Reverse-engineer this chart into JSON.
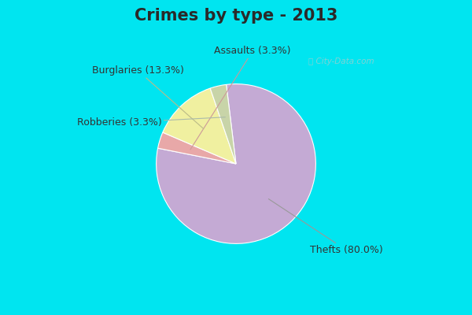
{
  "title": "Crimes by type - 2013",
  "wedge_order": [
    "Thefts",
    "Assaults",
    "Burglaries",
    "Robberies"
  ],
  "values": [
    80.0,
    3.3,
    13.3,
    3.3
  ],
  "colors": [
    "#c4aad4",
    "#e8a8a8",
    "#f0f0a0",
    "#c8d4a8"
  ],
  "background_cyan": "#00e5f0",
  "background_chart": "#c8e8d8",
  "title_fontsize": 15,
  "label_fontsize": 9,
  "startangle": 97,
  "counterclock": false
}
